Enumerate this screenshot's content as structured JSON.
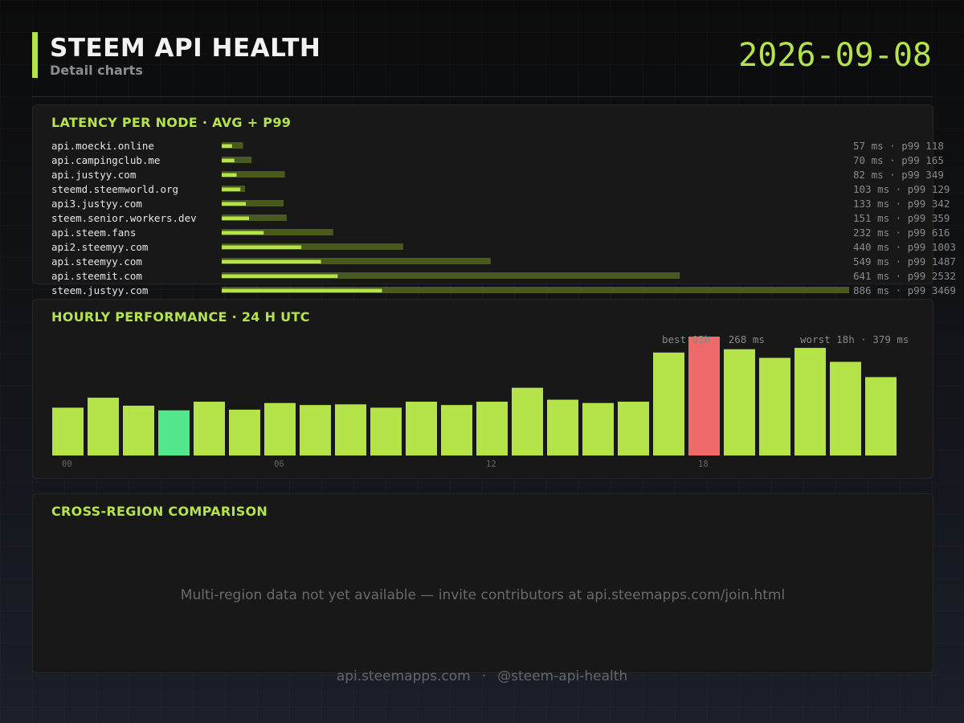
{
  "header": {
    "title": "STEEM API HEALTH",
    "subtitle": "Detail charts",
    "date": "2026-09-08"
  },
  "latency": {
    "title": "LATENCY PER NODE  ·  AVG + P99",
    "chart_data": {
      "type": "bar",
      "orientation": "horizontal",
      "categories": [
        "api.moecki.online",
        "api.campingclub.me",
        "api.justyy.com",
        "steemd.steemworld.org",
        "api3.justyy.com",
        "steem.senior.workers.dev",
        "api.steem.fans",
        "api2.steemyy.com",
        "api.steemyy.com",
        "api.steemit.com",
        "steem.justyy.com"
      ],
      "series": [
        {
          "name": "avg",
          "unit": "ms",
          "values": [
            57,
            70,
            82,
            103,
            133,
            151,
            232,
            440,
            549,
            641,
            886
          ]
        },
        {
          "name": "p99",
          "values": [
            118,
            165,
            349,
            129,
            342,
            359,
            616,
            1003,
            1487,
            2532,
            3469
          ]
        }
      ],
      "colors": {
        "avg": "#b5e34a",
        "p99": "#4a5a1f"
      }
    }
  },
  "hourly": {
    "title": "HOURLY PERFORMANCE  ·  24 H UTC",
    "best_text": "best 03h · 268 ms",
    "worst_text": "worst 18h · 379 ms",
    "chart_data": {
      "type": "bar",
      "categories": [
        "00",
        "01",
        "02",
        "03",
        "04",
        "05",
        "06",
        "07",
        "08",
        "09",
        "10",
        "11",
        "12",
        "13",
        "14",
        "15",
        "16",
        "17",
        "18",
        "19",
        "20",
        "21",
        "22",
        "23"
      ],
      "tick_labels": [
        "00",
        "06",
        "12",
        "18"
      ],
      "values": [
        272,
        287,
        275,
        268,
        281,
        269,
        279,
        276,
        277,
        272,
        281,
        276,
        281,
        302,
        284,
        279,
        281,
        355,
        379,
        360,
        347,
        362,
        341,
        318
      ],
      "best_index": 3,
      "worst_index": 18,
      "colors": {
        "normal": "#b5e34a",
        "best": "#54e68c",
        "worst": "#ee6a6a"
      }
    }
  },
  "cross_region": {
    "title": "CROSS-REGION COMPARISON",
    "message": "Multi-region data not yet available — invite contributors at api.steemapps.com/join.html"
  },
  "footer": {
    "site": "api.steemapps.com",
    "separator": "·",
    "handle": "@steem-api-health"
  }
}
